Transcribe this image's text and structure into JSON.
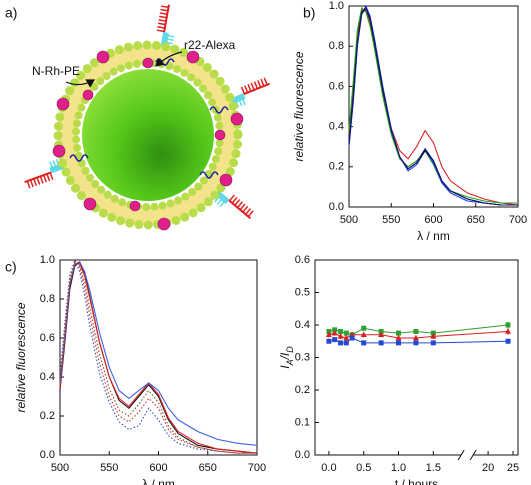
{
  "diagram": {
    "panel": "a)",
    "labels": [
      "N-Rh-PE",
      "r22-Alexa"
    ]
  },
  "chart_data": [
    {
      "type": "line",
      "panel": "b)",
      "xlabel": "λ / nm",
      "ylabel": "relative fluorescence",
      "x": [
        500,
        505,
        510,
        515,
        520,
        525,
        530,
        540,
        550,
        560,
        570,
        580,
        590,
        600,
        610,
        620,
        640,
        660,
        680,
        700
      ],
      "xlim": [
        500,
        700
      ],
      "xticks": [
        500,
        550,
        600,
        650,
        700
      ],
      "ylim": [
        0,
        1
      ],
      "yticks": [
        {
          "value": 0,
          "label": "0.0"
        },
        {
          "value": 0.2,
          "label": "0.2"
        },
        {
          "value": 0.4,
          "label": "0.4"
        },
        {
          "value": 0.6,
          "label": "0.6"
        },
        {
          "value": 0.8,
          "label": "0.8"
        },
        {
          "value": 1,
          "label": "1.0"
        }
      ],
      "series": [
        {
          "color": "#e02020",
          "values": [
            0.36,
            0.6,
            0.86,
            0.98,
            0.98,
            0.91,
            0.8,
            0.57,
            0.39,
            0.28,
            0.24,
            0.3,
            0.38,
            0.32,
            0.2,
            0.13,
            0.07,
            0.04,
            0.02,
            0.01
          ]
        },
        {
          "color": "#20a020",
          "values": [
            0.38,
            0.62,
            0.88,
            0.99,
            0.97,
            0.9,
            0.79,
            0.55,
            0.36,
            0.24,
            0.2,
            0.23,
            0.28,
            0.21,
            0.12,
            0.08,
            0.05,
            0.03,
            0.02,
            0.02
          ]
        },
        {
          "color": "#2040e0",
          "values": [
            0.3,
            0.52,
            0.8,
            0.96,
            1.0,
            0.95,
            0.84,
            0.6,
            0.39,
            0.25,
            0.18,
            0.21,
            0.28,
            0.22,
            0.12,
            0.07,
            0.03,
            0.02,
            0.01,
            0.01
          ]
        },
        {
          "color": "#111111",
          "values": [
            0.32,
            0.55,
            0.82,
            0.97,
            0.99,
            0.93,
            0.82,
            0.58,
            0.38,
            0.25,
            0.19,
            0.22,
            0.28,
            0.23,
            0.13,
            0.08,
            0.04,
            0.02,
            0.01,
            0.01
          ]
        },
        {
          "color": "#101880",
          "values": [
            0.31,
            0.53,
            0.81,
            0.96,
            0.99,
            0.94,
            0.83,
            0.59,
            0.38,
            0.25,
            0.19,
            0.22,
            0.29,
            0.23,
            0.13,
            0.08,
            0.04,
            0.02,
            0.01,
            0.01
          ]
        }
      ]
    },
    {
      "type": "line",
      "panel": "c)",
      "xlabel": "λ / nm",
      "ylabel": "relative fluorescence",
      "x": [
        500,
        505,
        510,
        515,
        520,
        525,
        530,
        540,
        550,
        560,
        570,
        580,
        590,
        600,
        610,
        620,
        640,
        660,
        680,
        700
      ],
      "xlim": [
        500,
        700
      ],
      "xticks": [
        500,
        550,
        600,
        650,
        700
      ],
      "ylim": [
        0,
        1
      ],
      "yticks": [
        {
          "value": 0,
          "label": "0.0"
        },
        {
          "value": 0.2,
          "label": "0.2"
        },
        {
          "value": 0.4,
          "label": "0.4"
        },
        {
          "value": 0.6,
          "label": "0.6"
        },
        {
          "value": 0.8,
          "label": "0.8"
        },
        {
          "value": 1,
          "label": "1.0"
        }
      ],
      "series": [
        {
          "color": "#111111",
          "style": "solid",
          "values": [
            0.33,
            0.58,
            0.85,
            0.97,
            0.99,
            0.93,
            0.82,
            0.58,
            0.4,
            0.28,
            0.24,
            0.3,
            0.36,
            0.3,
            0.18,
            0.11,
            0.05,
            0.03,
            0.02,
            0.01
          ]
        },
        {
          "color": "#e02020",
          "style": "solid",
          "values": [
            0.34,
            0.6,
            0.87,
            0.98,
            0.98,
            0.92,
            0.81,
            0.58,
            0.4,
            0.29,
            0.25,
            0.31,
            0.37,
            0.31,
            0.19,
            0.12,
            0.06,
            0.03,
            0.02,
            0.01
          ]
        },
        {
          "color": "#4060e0",
          "style": "solid",
          "values": [
            0.36,
            0.62,
            0.88,
            0.98,
            0.99,
            0.94,
            0.85,
            0.63,
            0.45,
            0.33,
            0.29,
            0.33,
            0.37,
            0.33,
            0.24,
            0.18,
            0.12,
            0.08,
            0.06,
            0.05
          ]
        },
        {
          "color": "#3050c0",
          "style": "dotted",
          "values": [
            0.4,
            0.68,
            0.92,
            1.0,
            0.94,
            0.82,
            0.67,
            0.42,
            0.27,
            0.17,
            0.13,
            0.15,
            0.24,
            0.18,
            0.1,
            0.06,
            0.03,
            0.02,
            0.01,
            0.01
          ]
        },
        {
          "color": "#d03030",
          "style": "dotted",
          "values": [
            0.38,
            0.66,
            0.91,
            1.0,
            0.96,
            0.86,
            0.72,
            0.47,
            0.3,
            0.2,
            0.17,
            0.22,
            0.29,
            0.24,
            0.13,
            0.08,
            0.04,
            0.02,
            0.01,
            0.01
          ]
        },
        {
          "color": "#8a5020",
          "style": "dotted",
          "values": [
            0.36,
            0.63,
            0.89,
            0.99,
            0.97,
            0.89,
            0.76,
            0.52,
            0.34,
            0.23,
            0.2,
            0.26,
            0.33,
            0.27,
            0.15,
            0.09,
            0.04,
            0.02,
            0.01,
            0.01
          ]
        }
      ]
    },
    {
      "type": "scatter",
      "xlabel": "t / hours",
      "ylabel": [
        "I",
        "A",
        "/I",
        "D"
      ],
      "x": [
        0,
        0.083,
        0.167,
        0.25,
        0.333,
        0.5,
        0.75,
        1.0,
        1.25,
        1.5,
        24
      ],
      "xlim": [
        -0.2,
        26
      ],
      "xbreak": [
        1.9,
        17
      ],
      "xticks": [
        {
          "value": 0,
          "label": "0.0"
        },
        {
          "value": 0.5,
          "label": "0.5"
        },
        {
          "value": 1,
          "label": "1.0"
        },
        {
          "value": 1.5,
          "label": "1.5"
        },
        20,
        25
      ],
      "ylim": [
        0,
        0.6
      ],
      "yticks": [
        {
          "value": 0,
          "label": "0.0"
        },
        {
          "value": 0.1,
          "label": "0.1"
        },
        {
          "value": 0.2,
          "label": "0.2"
        },
        {
          "value": 0.3,
          "label": "0.3"
        },
        {
          "value": 0.4,
          "label": "0.4"
        },
        {
          "value": 0.5,
          "label": "0.5"
        },
        {
          "value": 0.6,
          "label": "0.6"
        }
      ],
      "series": [
        {
          "color": "#30a030",
          "marker": "square",
          "values": [
            0.38,
            0.385,
            0.38,
            0.375,
            0.37,
            0.39,
            0.38,
            0.375,
            0.38,
            0.375,
            0.4
          ],
          "errors": [
            0.008,
            0.008,
            0.008,
            0.008,
            0.008,
            0.008,
            0.008,
            0.008,
            0.008,
            0.008,
            0.01
          ]
        },
        {
          "color": "#d82020",
          "marker": "triangle",
          "values": [
            0.37,
            0.375,
            0.365,
            0.36,
            0.37,
            0.37,
            0.37,
            0.36,
            0.36,
            0.365,
            0.38
          ],
          "errors": [
            0.008,
            0.008,
            0.008,
            0.008,
            0.008,
            0.008,
            0.008,
            0.008,
            0.008,
            0.008,
            0.01
          ]
        },
        {
          "color": "#2448d0",
          "marker": "square",
          "values": [
            0.35,
            0.355,
            0.345,
            0.345,
            0.36,
            0.345,
            0.345,
            0.345,
            0.345,
            0.345,
            0.35
          ],
          "errors": [
            0.006,
            0.006,
            0.006,
            0.006,
            0.006,
            0.006,
            0.006,
            0.006,
            0.006,
            0.006,
            0.006
          ]
        }
      ]
    }
  ]
}
